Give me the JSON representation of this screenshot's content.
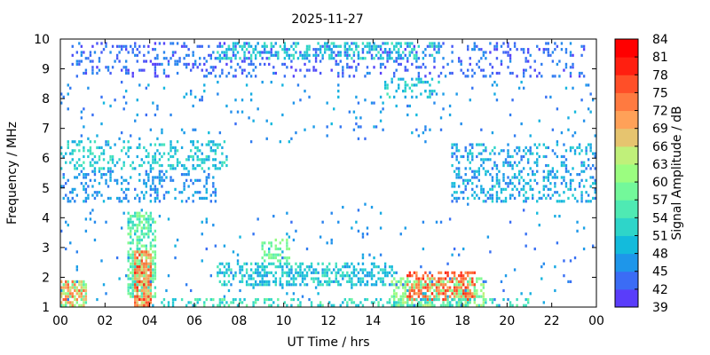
{
  "chart_data": {
    "type": "heatmap",
    "title": "2025-11-27",
    "xlabel": "UT Time / hrs",
    "ylabel": "Frequency / MHz",
    "xlim": [
      0,
      24
    ],
    "ylim": [
      1,
      10
    ],
    "x_ticks": [
      "00",
      "02",
      "04",
      "06",
      "08",
      "10",
      "12",
      "14",
      "16",
      "18",
      "20",
      "22",
      "00"
    ],
    "y_ticks": [
      "1",
      "2",
      "3",
      "4",
      "5",
      "6",
      "7",
      "8",
      "9",
      "10"
    ],
    "colorbar": {
      "label": "Signal Amplitude / dB",
      "min": 39,
      "max": 84,
      "ticks": [
        "39",
        "42",
        "45",
        "48",
        "51",
        "54",
        "57",
        "60",
        "63",
        "66",
        "69",
        "72",
        "75",
        "78",
        "81",
        "84"
      ],
      "colormap": [
        "#7f00ff",
        "#5a3dfa",
        "#3b6cf5",
        "#1e96ea",
        "#13bbdc",
        "#2ed5c9",
        "#4feab3",
        "#73f89a",
        "#9bfd80",
        "#c0f07a",
        "#e6c46f",
        "#ffa158",
        "#ff7a40",
        "#ff4f28",
        "#ff1f10",
        "#ff0000"
      ]
    },
    "regions": [
      {
        "x": [
          0.0,
          1.2
        ],
        "y": [
          1.0,
          1.9
        ],
        "amplitude": [
          57,
          78
        ],
        "density": 0.75
      },
      {
        "x": [
          0.0,
          7.5
        ],
        "y": [
          5.6,
          6.6
        ],
        "amplitude": [
          48,
          57
        ],
        "density": 0.3
      },
      {
        "x": [
          0.0,
          7.0
        ],
        "y": [
          4.5,
          5.6
        ],
        "amplitude": [
          45,
          51
        ],
        "density": 0.25
      },
      {
        "x": [
          0.5,
          23.5
        ],
        "y": [
          8.7,
          9.9
        ],
        "amplitude": [
          42,
          48
        ],
        "density": 0.2
      },
      {
        "x": [
          7.0,
          17.0
        ],
        "y": [
          9.3,
          9.9
        ],
        "amplitude": [
          48,
          57
        ],
        "density": 0.4
      },
      {
        "x": [
          0.0,
          24.0
        ],
        "y": [
          6.5,
          8.6
        ],
        "amplitude": [
          45,
          51
        ],
        "density": 0.04
      },
      {
        "x": [
          3.0,
          4.3
        ],
        "y": [
          1.3,
          4.2
        ],
        "amplitude": [
          54,
          63
        ],
        "density": 0.65
      },
      {
        "x": [
          3.3,
          4.1
        ],
        "y": [
          1.0,
          2.9
        ],
        "amplitude": [
          66,
          81
        ],
        "density": 0.75
      },
      {
        "x": [
          7.0,
          15.0
        ],
        "y": [
          1.7,
          2.5
        ],
        "amplitude": [
          48,
          57
        ],
        "density": 0.45
      },
      {
        "x": [
          9.0,
          10.3
        ],
        "y": [
          2.5,
          3.3
        ],
        "amplitude": [
          57,
          63
        ],
        "density": 0.45
      },
      {
        "x": [
          14.8,
          19.0
        ],
        "y": [
          1.0,
          2.0
        ],
        "amplitude": [
          57,
          66
        ],
        "density": 0.55
      },
      {
        "x": [
          15.5,
          18.6
        ],
        "y": [
          1.2,
          2.2
        ],
        "amplitude": [
          72,
          81
        ],
        "density": 0.5
      },
      {
        "x": [
          4.5,
          21.0
        ],
        "y": [
          1.0,
          1.3
        ],
        "amplitude": [
          51,
          60
        ],
        "density": 0.3
      },
      {
        "x": [
          17.5,
          24.0
        ],
        "y": [
          4.5,
          6.5
        ],
        "amplitude": [
          45,
          54
        ],
        "density": 0.3
      },
      {
        "x": [
          14.5,
          17.0
        ],
        "y": [
          8.0,
          8.7
        ],
        "amplitude": [
          48,
          57
        ],
        "density": 0.25
      },
      {
        "x": [
          0.0,
          24.0
        ],
        "y": [
          1.0,
          4.5
        ],
        "amplitude": [
          45,
          51
        ],
        "density": 0.02
      }
    ]
  }
}
